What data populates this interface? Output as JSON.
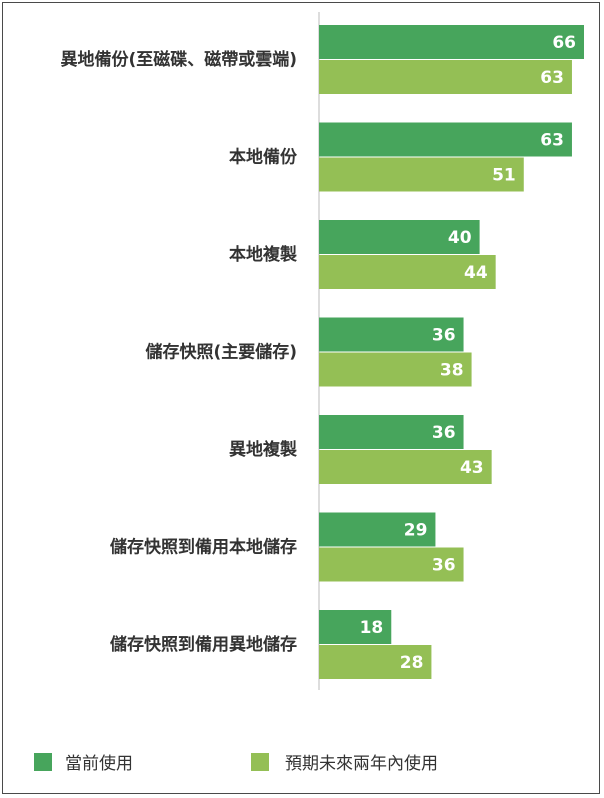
{
  "chart_data": {
    "type": "bar",
    "orientation": "horizontal",
    "categories": [
      "異地備份(至磁碟、磁帶或雲端)",
      "本地備份",
      "本地複製",
      "儲存快照(主要儲存)",
      "異地複製",
      "儲存快照到備用本地儲存",
      "儲存快照到備用異地儲存"
    ],
    "series": [
      {
        "name": "當前使用",
        "color": "#47a55c",
        "values": [
          66,
          63,
          40,
          36,
          36,
          29,
          18
        ]
      },
      {
        "name": "預期未來兩年內使用",
        "color": "#94bf55",
        "values": [
          63,
          51,
          44,
          38,
          43,
          36,
          28
        ]
      }
    ],
    "xlim": [
      0,
      66
    ],
    "grid": false,
    "legend_position": "bottom"
  }
}
